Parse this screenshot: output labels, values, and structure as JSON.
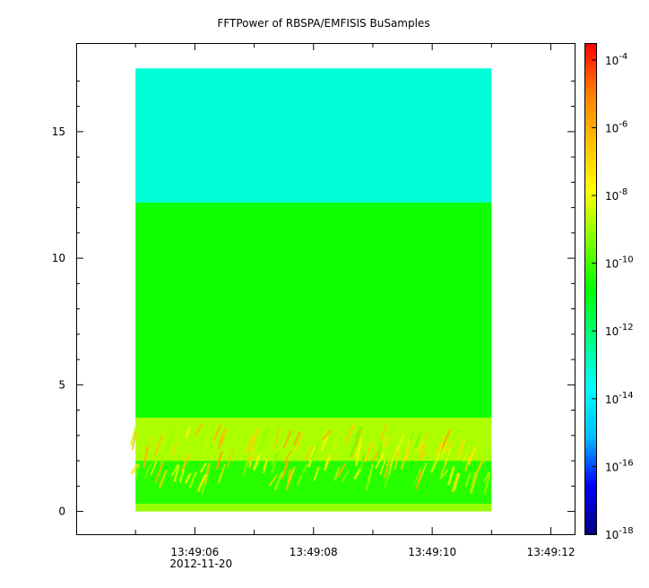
{
  "chart_data": {
    "type": "heatmap",
    "title": "FFTPower of RBSPA/EMFISIS  BuSamples",
    "xlabel": "",
    "ylabel": "",
    "x_ticks": [
      "13:49:06",
      "13:49:08",
      "13:49:10",
      "13:49:12"
    ],
    "x_tick_seconds": [
      6,
      8,
      10,
      12
    ],
    "x_minor_tick_seconds": [
      5,
      7,
      9,
      11
    ],
    "x_date_label": "2012-11-20",
    "xlim_seconds": [
      4.0,
      12.4
    ],
    "data_x_range_seconds": [
      5.0,
      11.0
    ],
    "y_ticks": [
      0,
      5,
      10,
      15
    ],
    "ylim": [
      -0.9,
      18.5
    ],
    "data_y_range": [
      0,
      17.5
    ],
    "colorbar": {
      "scale": "log",
      "range_exponents": [
        -18,
        -3.5
      ],
      "tick_base": "10",
      "tick_exponents": [
        "-18",
        "-16",
        "-14",
        "-12",
        "-10",
        "-8",
        "-6",
        "-4"
      ],
      "tick_values": [
        -18,
        -16,
        -14,
        -12,
        -10,
        -8,
        -6,
        -4
      ],
      "colormap": [
        "#00007f",
        "#0000ff",
        "#00bfff",
        "#00ffff",
        "#00ff7f",
        "#00ff00",
        "#7fff00",
        "#ffff00",
        "#ffbf00",
        "#ff7f00",
        "#ff0000"
      ]
    },
    "bands": [
      {
        "y_range": [
          12.2,
          17.5
        ],
        "log_power": -13.2
      },
      {
        "y_range": [
          3.7,
          12.2
        ],
        "log_power": -10.6
      },
      {
        "y_range": [
          2.0,
          3.7
        ],
        "log_power": -8.8
      },
      {
        "y_range": [
          0.3,
          2.0
        ],
        "log_power": -10.3
      },
      {
        "y_range": [
          0,
          0.3
        ],
        "log_power": -9.0
      }
    ],
    "grid": false,
    "legend": "colorbar-right"
  }
}
